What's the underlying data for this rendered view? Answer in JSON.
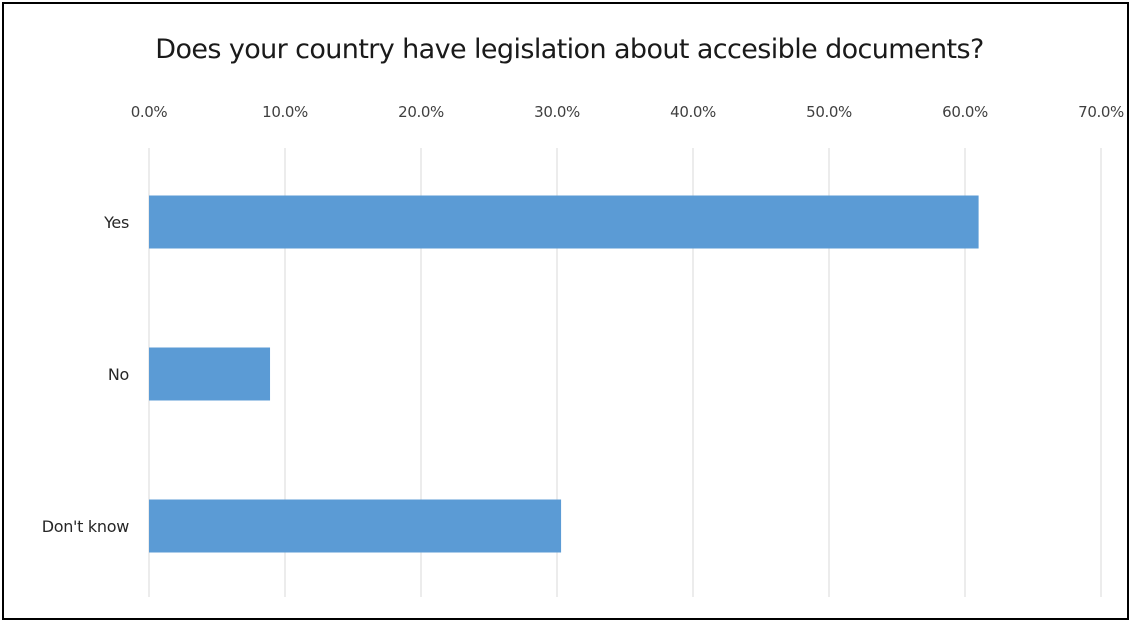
{
  "chart_data": {
    "type": "bar",
    "orientation": "horizontal",
    "title": "Does your country have legislation about accesible documents?",
    "categories": [
      "Yes",
      "No",
      "Don't know"
    ],
    "values": [
      61.0,
      8.9,
      30.3
    ],
    "value_unit": "%",
    "xlim": [
      0,
      70
    ],
    "x_ticks": [
      "0.0%",
      "10.0%",
      "20.0%",
      "30.0%",
      "40.0%",
      "50.0%",
      "60.0%",
      "70.0%"
    ],
    "x_axis_position": "top",
    "grid": "vertical",
    "legend": "none",
    "bar_color": "#5B9BD5",
    "grid_color": "#D9D9D9"
  }
}
